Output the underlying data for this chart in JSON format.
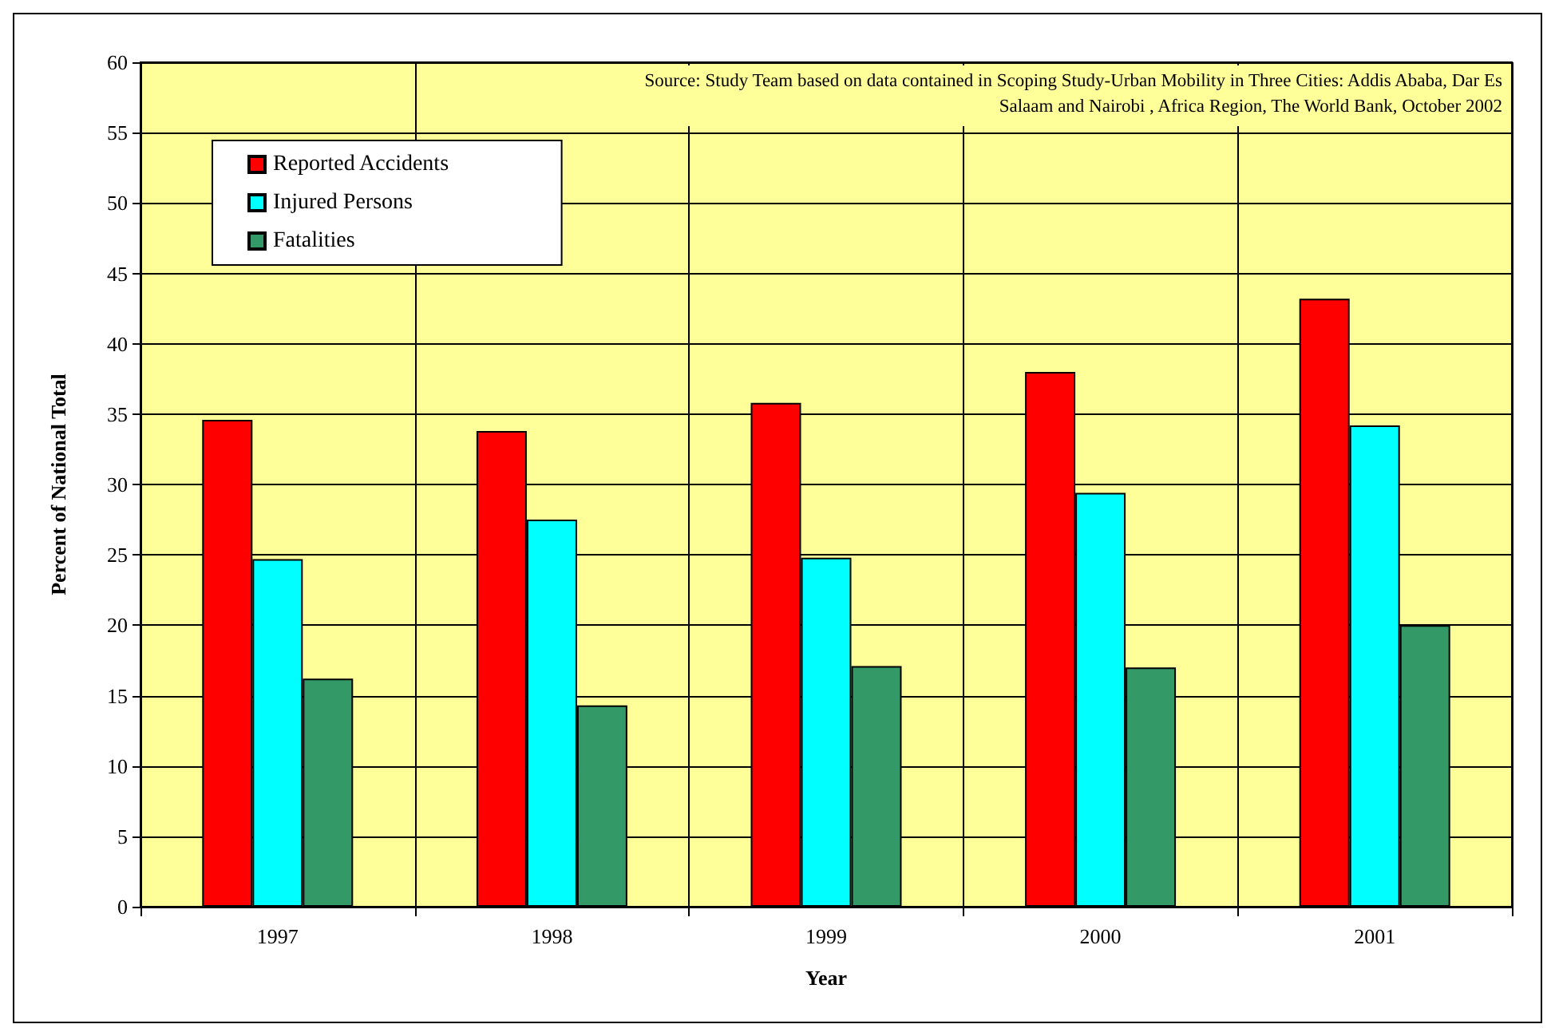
{
  "chart_data": {
    "type": "bar",
    "xlabel": "Year",
    "ylabel": "Percent of National Total",
    "categories": [
      "1997",
      "1998",
      "1999",
      "2000",
      "2001"
    ],
    "series": [
      {
        "name": "Reported Accidents",
        "color": "#ff0000",
        "values": [
          34.6,
          33.8,
          35.8,
          38.0,
          43.2
        ]
      },
      {
        "name": "Injured Persons",
        "color": "#00ffff",
        "values": [
          24.7,
          27.5,
          24.8,
          29.4,
          34.2
        ]
      },
      {
        "name": "Fatalities",
        "color": "#339966",
        "values": [
          16.2,
          14.3,
          17.1,
          17.0,
          20.0
        ]
      }
    ],
    "ylim": [
      0,
      60
    ],
    "yticks": [
      0,
      5,
      10,
      15,
      20,
      25,
      30,
      35,
      40,
      45,
      50,
      55,
      60
    ],
    "grid": true,
    "legend": "top left",
    "annotations": [
      "Source: Study Team based on data contained in Scoping Study-Urban Mobility in Three Cities: Addis Ababa, Dar Es Salaam and Nairobi , Africa Region, The World Bank, October 2002"
    ]
  }
}
